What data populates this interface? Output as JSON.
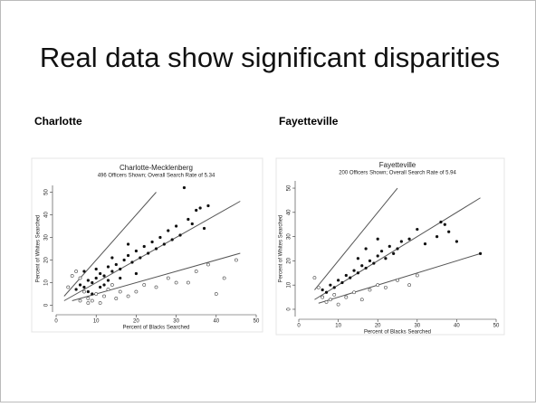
{
  "slide": {
    "title": "Real data show significant disparities",
    "left_label": "Charlotte",
    "right_label": "Fayetteville"
  },
  "chart_data": [
    {
      "type": "scatter",
      "title": "Charlotte-Mecklenberg",
      "subtitle": "496 Officers Shown; Overall Search Rate of 5.34",
      "x_label": "Percent of Blacks Searched",
      "y_label": "Percent of Whites Searched",
      "xlim": [
        0,
        50
      ],
      "ylim": [
        -3,
        53
      ],
      "xticks": [
        0,
        10,
        20,
        30,
        40,
        50
      ],
      "yticks": [
        0,
        10,
        20,
        30,
        40,
        50
      ],
      "series": [
        {
          "kind": "line",
          "color": "#555555",
          "x": [
            2,
            25
          ],
          "values": [
            4,
            50
          ]
        },
        {
          "kind": "line",
          "color": "#555555",
          "x": [
            2,
            46
          ],
          "values": [
            2,
            46
          ]
        },
        {
          "kind": "line",
          "color": "#555555",
          "x": [
            4,
            46
          ],
          "values": [
            2,
            23
          ]
        },
        {
          "kind": "points",
          "marker": "filled",
          "color": "#111111",
          "x": [
            5,
            6,
            7,
            8,
            9,
            10,
            11,
            12,
            13,
            14,
            15,
            16,
            17,
            18,
            19,
            20,
            21,
            22,
            23,
            24,
            25,
            26,
            27,
            28,
            29,
            30,
            31,
            32,
            33,
            34,
            35,
            36,
            37,
            38,
            6,
            8,
            10,
            12,
            14,
            16,
            18,
            20,
            9,
            11,
            13,
            7
          ],
          "values": [
            7,
            9,
            8,
            11,
            10,
            12,
            14,
            13,
            17,
            15,
            18,
            16,
            20,
            22,
            19,
            24,
            21,
            26,
            23,
            28,
            25,
            30,
            27,
            33,
            29,
            35,
            31,
            52,
            38,
            36,
            42,
            43,
            34,
            44,
            12,
            6,
            16,
            9,
            21,
            12,
            27,
            14,
            5,
            8,
            11,
            15
          ]
        },
        {
          "kind": "points",
          "marker": "hollow",
          "color": "#444444",
          "x": [
            3,
            4,
            5,
            6,
            7,
            8,
            9,
            10,
            11,
            12,
            13,
            15,
            18,
            20,
            22,
            25,
            28,
            30,
            33,
            35,
            38,
            40,
            42,
            45,
            14,
            16,
            6,
            8
          ],
          "values": [
            8,
            13,
            15,
            12,
            6,
            3,
            2,
            5,
            1,
            4,
            7,
            3,
            4,
            6,
            9,
            8,
            12,
            10,
            10,
            15,
            18,
            5,
            12,
            20,
            9,
            6,
            2,
            1
          ]
        }
      ]
    },
    {
      "type": "scatter",
      "title": "Fayetteville",
      "subtitle": "200 Officers Shown; Overall Search Rate of 5.94",
      "x_label": "Percent of Blacks Searched",
      "y_label": "Percent of Whites Searched",
      "xlim": [
        0,
        50
      ],
      "ylim": [
        -3,
        53
      ],
      "xticks": [
        0,
        10,
        20,
        30,
        40,
        50
      ],
      "yticks": [
        0,
        10,
        20,
        30,
        40,
        50
      ],
      "series": [
        {
          "kind": "line",
          "color": "#555555",
          "x": [
            4,
            25
          ],
          "values": [
            8,
            50
          ]
        },
        {
          "kind": "line",
          "color": "#555555",
          "x": [
            4,
            46
          ],
          "values": [
            4,
            46
          ]
        },
        {
          "kind": "line",
          "color": "#555555",
          "x": [
            5,
            46
          ],
          "values": [
            2.5,
            23
          ]
        },
        {
          "kind": "points",
          "marker": "filled",
          "color": "#111111",
          "x": [
            6,
            7,
            8,
            9,
            10,
            11,
            12,
            13,
            14,
            15,
            16,
            17,
            18,
            19,
            20,
            21,
            22,
            23,
            24,
            25,
            26,
            28,
            30,
            32,
            35,
            36,
            37,
            38,
            40,
            20,
            17,
            15,
            46
          ],
          "values": [
            8,
            7,
            10,
            9,
            12,
            11,
            14,
            13,
            16,
            15,
            18,
            17,
            20,
            19,
            22,
            24,
            21,
            26,
            23,
            25,
            28,
            29,
            33,
            27,
            30,
            36,
            35,
            32,
            28,
            29,
            25,
            21,
            23
          ]
        },
        {
          "kind": "points",
          "marker": "hollow",
          "color": "#444444",
          "x": [
            4,
            6,
            7,
            8,
            9,
            10,
            12,
            14,
            16,
            18,
            20,
            22,
            25,
            28,
            30,
            5
          ],
          "values": [
            13,
            5,
            3,
            4,
            6,
            2,
            5,
            7,
            4,
            8,
            10,
            9,
            12,
            10,
            14,
            9
          ]
        }
      ]
    }
  ]
}
